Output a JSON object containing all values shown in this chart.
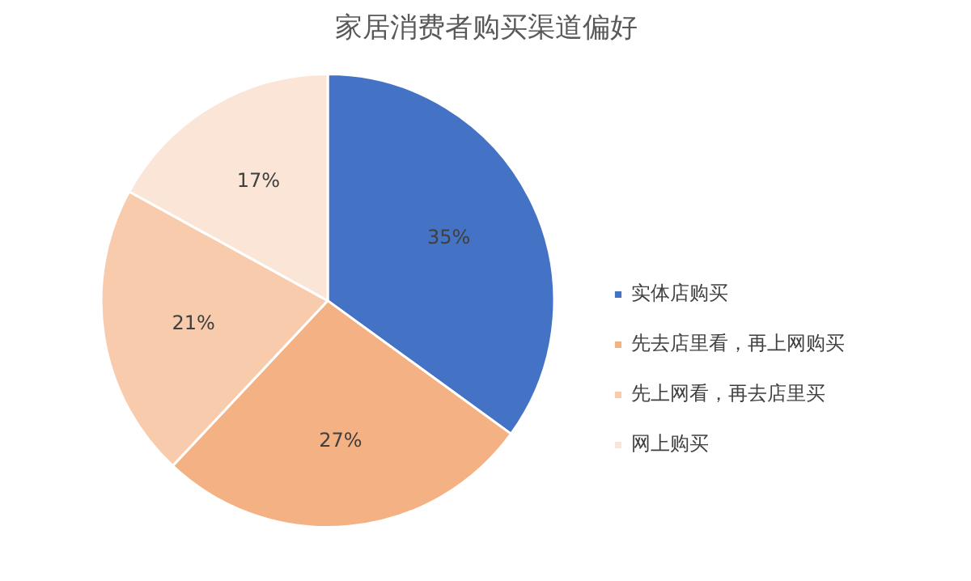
{
  "chart_data": {
    "type": "pie",
    "title": "家居消费者购买渠道偏好",
    "categories": [
      "实体店购买",
      "先去店里看，再上网购买",
      "先上网看，再去店里买",
      "网上购买"
    ],
    "values": [
      35,
      27,
      21,
      17
    ],
    "colors": [
      "#4472c4",
      "#f4b183",
      "#f8cbad",
      "#fbe5d6"
    ],
    "value_labels": [
      "35%",
      "27%",
      "21%",
      "17%"
    ],
    "legend": "right"
  }
}
